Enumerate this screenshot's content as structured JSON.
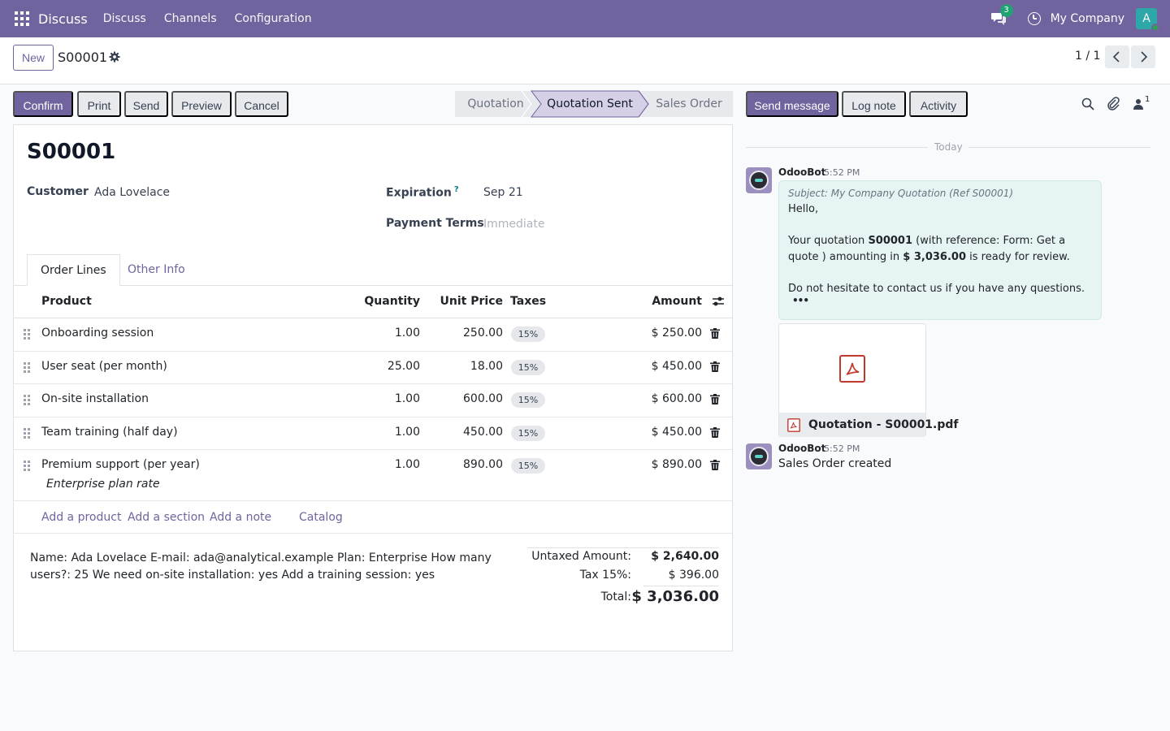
{
  "navbar": {
    "app_name": "Discuss",
    "menu": [
      "Discuss",
      "Channels",
      "Configuration"
    ],
    "messages_count": "3",
    "company": "My Company",
    "user_initial": "A"
  },
  "control": {
    "new_label": "New",
    "record_name": "S00001",
    "pager": "1 / 1"
  },
  "actions": {
    "confirm": "Confirm",
    "print": "Print",
    "send": "Send",
    "preview": "Preview",
    "cancel": "Cancel"
  },
  "statusbar": {
    "stages": [
      "Quotation",
      "Quotation Sent",
      "Sales Order"
    ],
    "active": "Quotation Sent"
  },
  "chatter_buttons": {
    "send_message": "Send message",
    "log_note": "Log note",
    "activity": "Activity",
    "followers_count": "1"
  },
  "form": {
    "title": "S00001",
    "customer_label": "Customer",
    "customer_value": "Ada Lovelace",
    "expiration_label": "Expiration",
    "expiration_help": "?",
    "expiration_value": "Sep 21",
    "payment_terms_label": "Payment Terms",
    "payment_terms_placeholder": "Immediate",
    "tabs": [
      "Order Lines",
      "Other Info"
    ],
    "columns": {
      "product": "Product",
      "quantity": "Quantity",
      "unit_price": "Unit Price",
      "taxes": "Taxes",
      "amount": "Amount"
    },
    "lines": [
      {
        "product": "Onboarding session",
        "quantity": "1.00",
        "unit_price": "250.00",
        "tax": "15%",
        "amount": "$ 250.00"
      },
      {
        "product": "User seat (per month)",
        "quantity": "25.00",
        "unit_price": "18.00",
        "tax": "15%",
        "amount": "$ 450.00"
      },
      {
        "product": "On-site installation",
        "quantity": "1.00",
        "unit_price": "600.00",
        "tax": "15%",
        "amount": "$ 600.00"
      },
      {
        "product": "Team training (half day)",
        "quantity": "1.00",
        "unit_price": "450.00",
        "tax": "15%",
        "amount": "$ 450.00"
      },
      {
        "product": "Premium support (per year)",
        "quantity": "1.00",
        "unit_price": "890.00",
        "tax": "15%",
        "amount": "$ 890.00",
        "description": "Enterprise plan rate"
      }
    ],
    "add_links": [
      "Add a product",
      "Add a section",
      "Add a note",
      "Catalog"
    ],
    "note": "Name: Ada Lovelace E-mail: ada@analytical.example Plan: Enterprise How many users?: 25 We need on-site installation: yes Add a training session: yes",
    "totals": {
      "untaxed_label": "Untaxed Amount:",
      "untaxed_value": "$ 2,640.00",
      "tax_label": "Tax 15%:",
      "tax_value": "$ 396.00",
      "total_label": "Total:",
      "total_value": "$ 3,036.00"
    }
  },
  "chatter": {
    "date_separator": "Today",
    "messages": [
      {
        "author": "OdooBot",
        "time": "5:52 PM",
        "subject": "Subject: My Company Quotation (Ref S00001)",
        "greeting": "Hello,",
        "body_1": "Your quotation",
        "body_ref": "S00001",
        "body_2": "(with reference: Form: Get a quote )",
        "body_3": "amounting in",
        "body_amount": "$ 3,036.00",
        "body_4": "is ready for review.",
        "closing": "Do not hesitate to contact us if you have any questions.",
        "more": "•••",
        "attachment": "Quotation - S00001.pdf"
      },
      {
        "author": "OdooBot",
        "time": "5:52 PM",
        "body": "Sales Order created"
      }
    ]
  },
  "colors": {
    "brand": "#71639e",
    "bubble": "#e6f4f3",
    "pdf_red": "#c0392b"
  }
}
